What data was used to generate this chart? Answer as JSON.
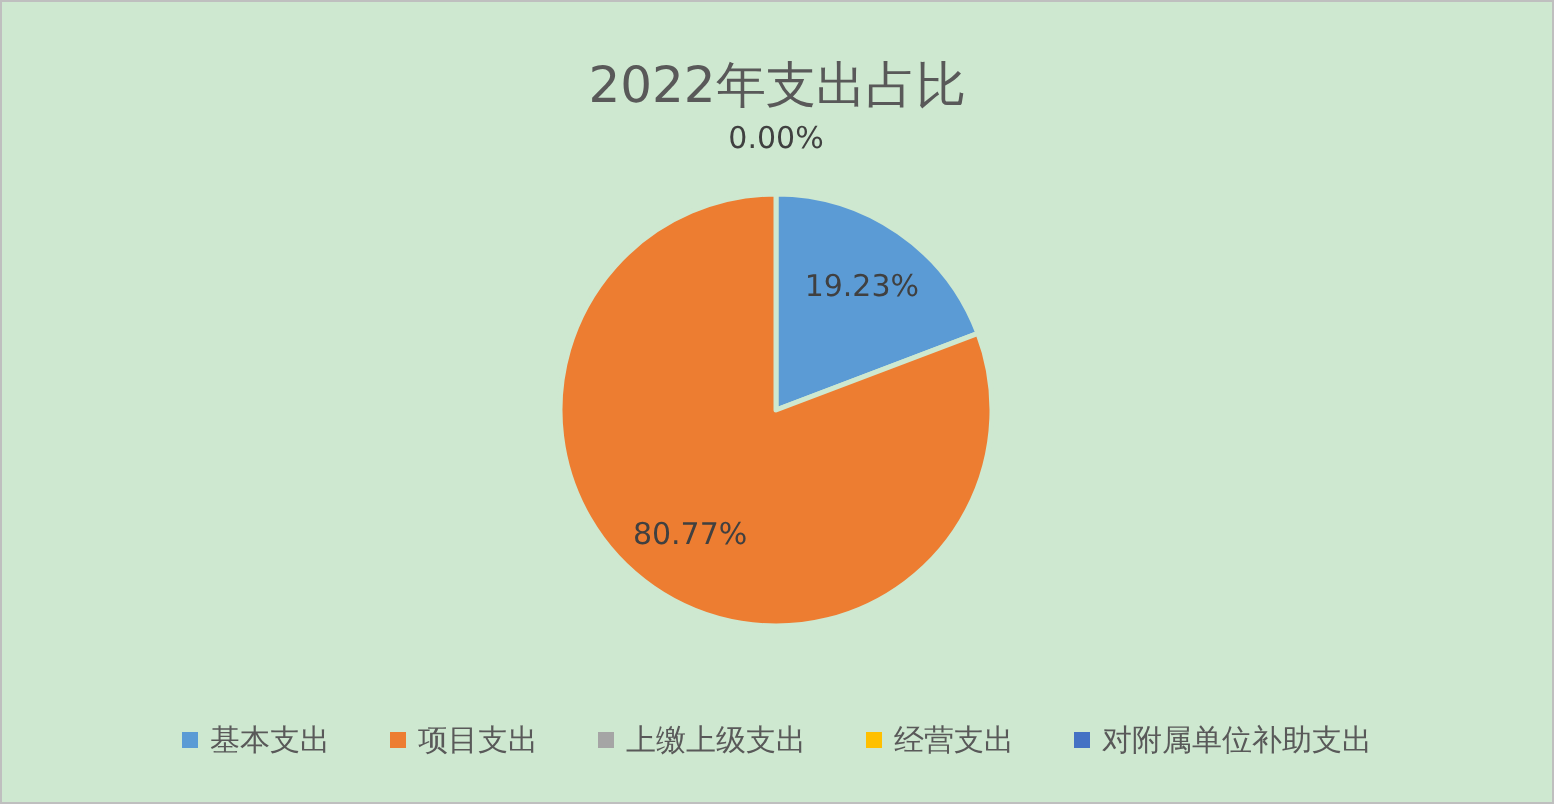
{
  "chart_data": {
    "type": "pie",
    "title": "2022年支出占比",
    "categories": [
      "基本支出",
      "项目支出",
      "上缴上级支出",
      "经营支出",
      "对附属单位补助支出"
    ],
    "values": [
      19.23,
      80.77,
      0,
      0,
      0
    ],
    "colors": [
      "#5b9bd5",
      "#ed7d31",
      "#a5a5a5",
      "#ffc000",
      "#4472c4"
    ],
    "value_labels": [
      "19.23%",
      "80.77%",
      "0.00%",
      null,
      null
    ],
    "legend": "bottom"
  }
}
